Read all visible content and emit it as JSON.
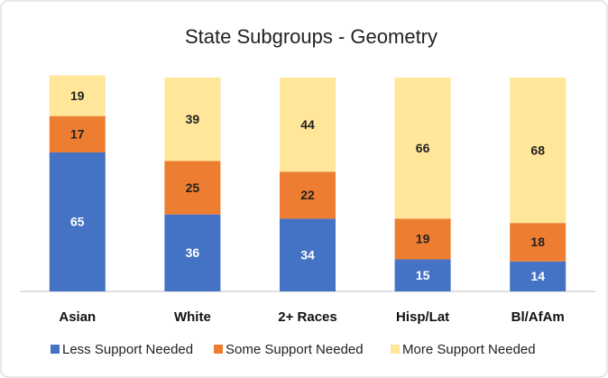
{
  "chart_data": {
    "type": "stacked_bar",
    "title": "State Subgroups - Geometry",
    "categories": [
      "Asian",
      "White",
      "2+ Races",
      "Hisp/Lat",
      "Bl/AfAm"
    ],
    "series": [
      {
        "name": "Less Support Needed",
        "color": "#4472c4",
        "values": [
          65,
          36,
          34,
          15,
          14
        ]
      },
      {
        "name": "Some Support Needed",
        "color": "#ed7d31",
        "values": [
          17,
          25,
          22,
          19,
          18
        ]
      },
      {
        "name": "More Support Needed",
        "color": "#ffe699",
        "values": [
          19,
          39,
          44,
          66,
          68
        ]
      }
    ],
    "ylim": [
      0,
      100
    ],
    "legend": "bottom"
  }
}
